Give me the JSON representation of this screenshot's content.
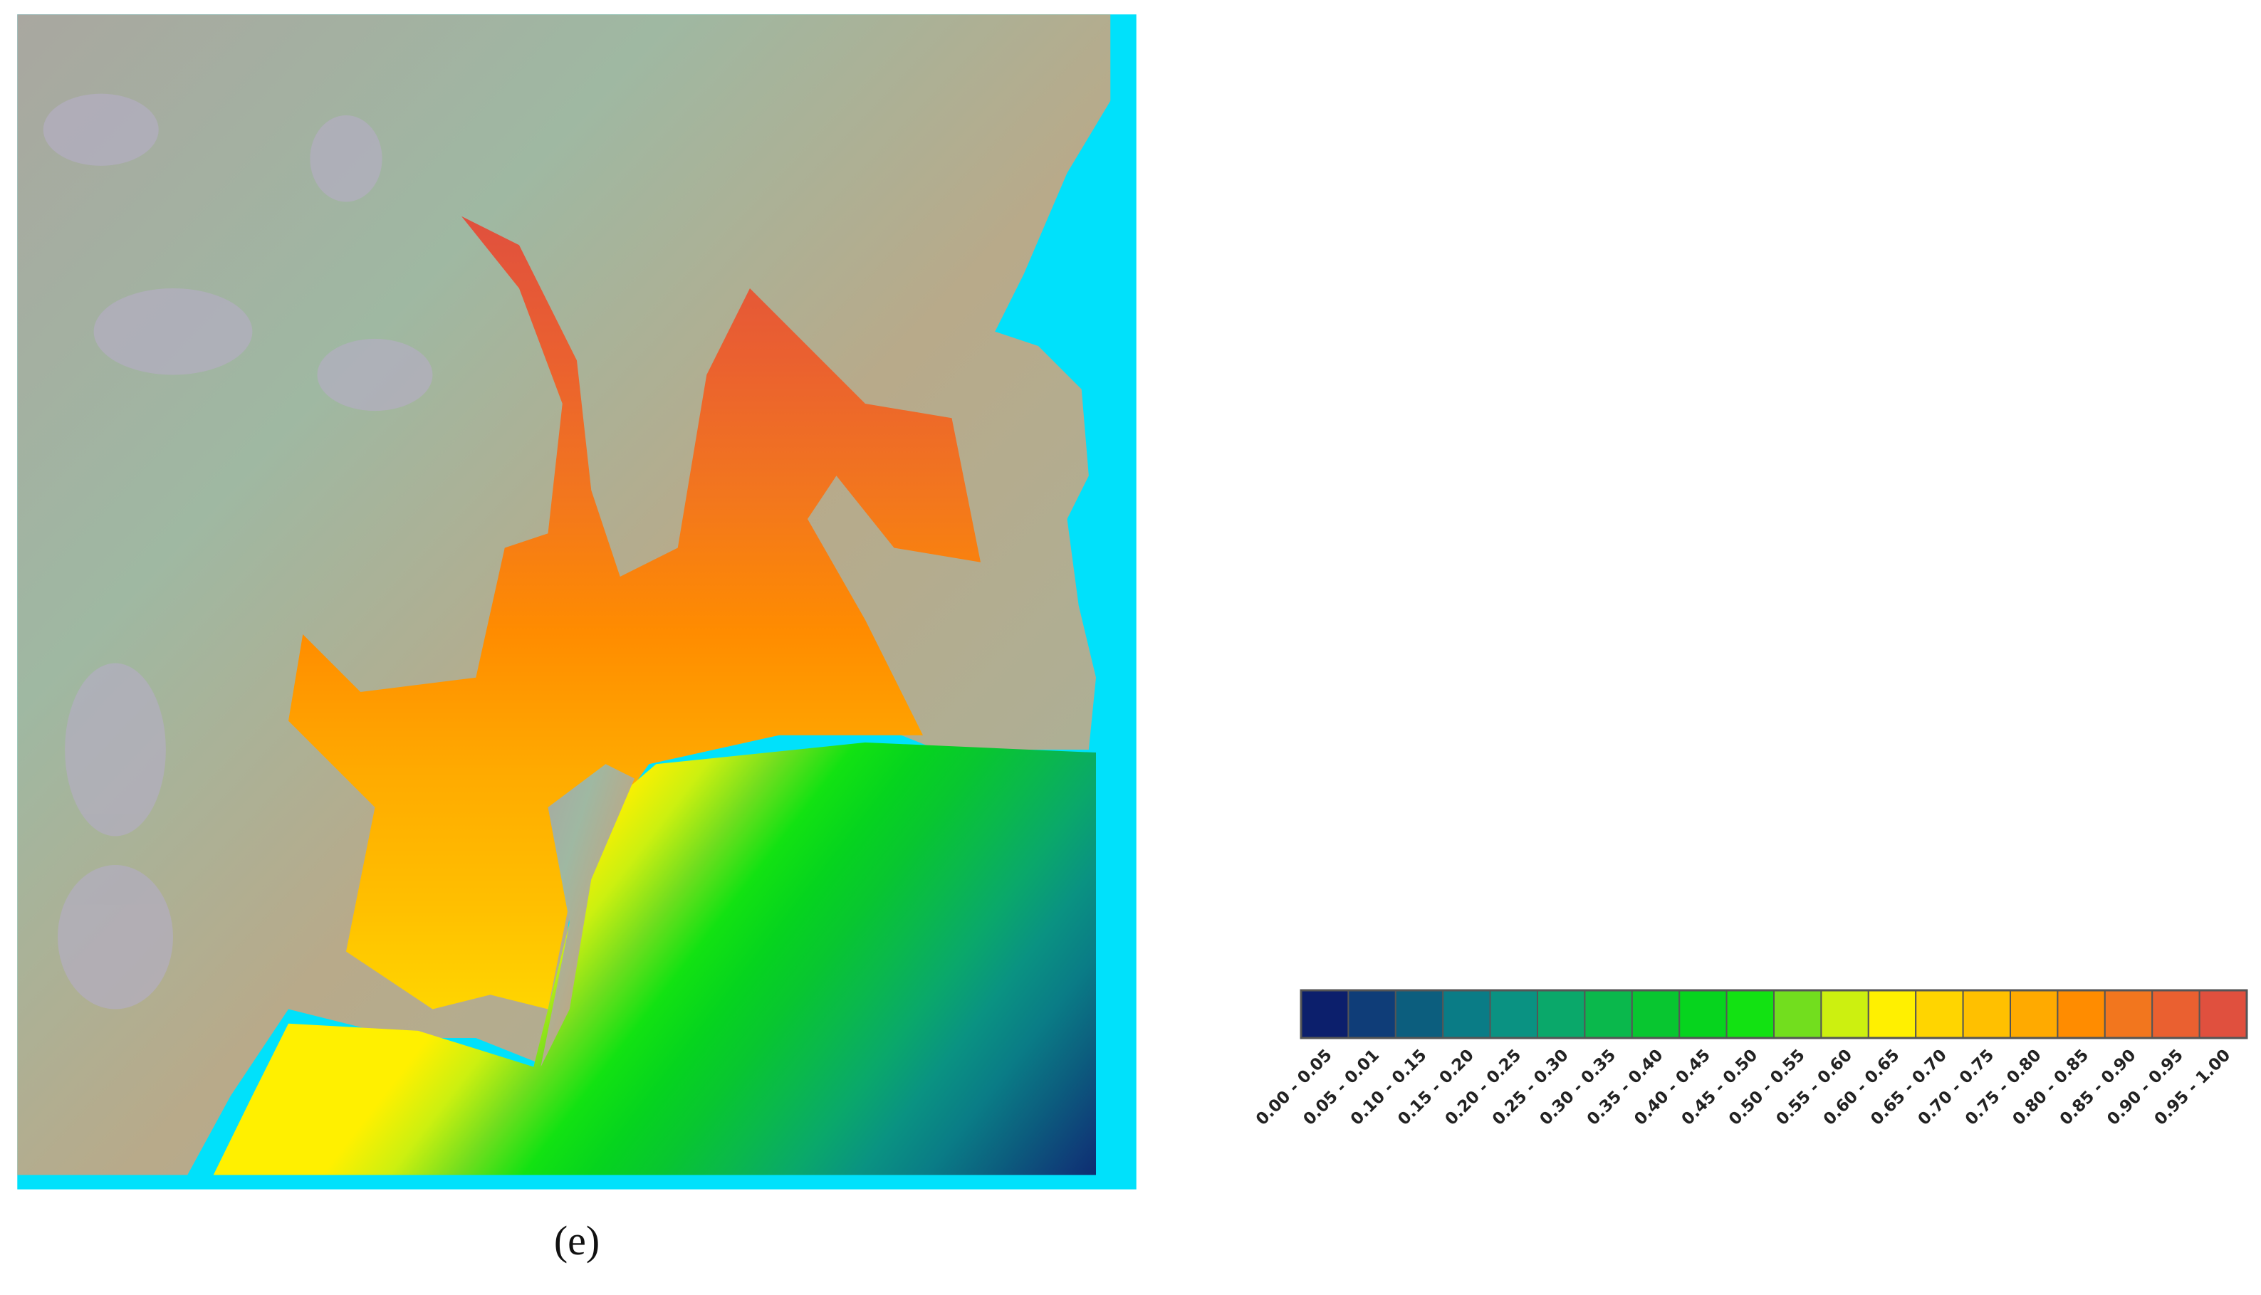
{
  "caption": "(e)",
  "legend": {
    "items": [
      {
        "label": "0.00 - 0.05",
        "color": "#0c1f6c"
      },
      {
        "label": "0.05 - 0.01",
        "color": "#0f3d78"
      },
      {
        "label": "0.10 - 0.15",
        "color": "#0c5e7e"
      },
      {
        "label": "0.15 - 0.20",
        "color": "#0a7c86"
      },
      {
        "label": "0.20 - 0.25",
        "color": "#0a9282"
      },
      {
        "label": "0.25 - 0.30",
        "color": "#0aa86a"
      },
      {
        "label": "0.30 - 0.35",
        "color": "#0ab84c"
      },
      {
        "label": "0.35 - 0.40",
        "color": "#08c630"
      },
      {
        "label": "0.40 - 0.45",
        "color": "#06d41e"
      },
      {
        "label": "0.45 - 0.50",
        "color": "#12e212"
      },
      {
        "label": "0.50 - 0.55",
        "color": "#72de1e"
      },
      {
        "label": "0.55 - 0.60",
        "color": "#ccf010"
      },
      {
        "label": "0.60 - 0.65",
        "color": "#fff000"
      },
      {
        "label": "0.65 - 0.70",
        "color": "#ffd500"
      },
      {
        "label": "0.70 - 0.75",
        "color": "#ffc000"
      },
      {
        "label": "0.75 - 0.80",
        "color": "#ffaa00"
      },
      {
        "label": "0.80 - 0.85",
        "color": "#ff8c00"
      },
      {
        "label": "0.85 - 0.90",
        "color": "#f2761e"
      },
      {
        "label": "0.90 - 0.95",
        "color": "#ea6030"
      },
      {
        "label": "0.95 - 1.00",
        "color": "#e0503e"
      }
    ]
  }
}
